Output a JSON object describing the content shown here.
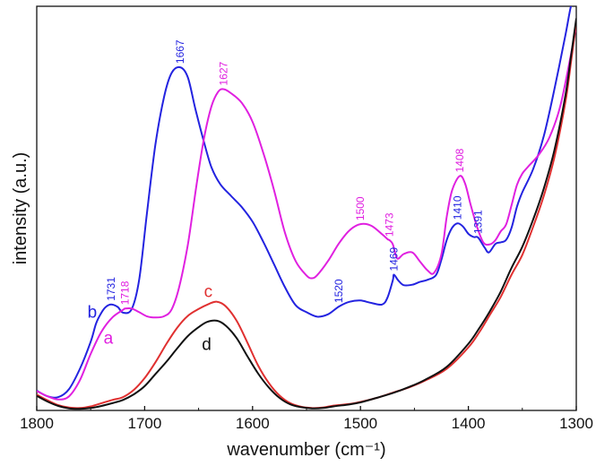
{
  "chart_data": {
    "type": "line",
    "title": "",
    "xlabel": "wavenumber (cm⁻¹)",
    "ylabel": "intensity (a.u.)",
    "x_reversed": true,
    "xlim": [
      1800,
      1300
    ],
    "ylim": [
      0,
      100
    ],
    "x_ticks": [
      1800,
      1700,
      1600,
      1500,
      1400,
      1300
    ],
    "y_ticks_shown": false,
    "grid": false,
    "legend": "none",
    "series": [
      {
        "name": "b",
        "color": "#2323e0",
        "x": [
          1800,
          1790,
          1780,
          1770,
          1760,
          1750,
          1745,
          1740,
          1736,
          1731,
          1725,
          1720,
          1712,
          1705,
          1698,
          1690,
          1682,
          1675,
          1667,
          1660,
          1653,
          1645,
          1638,
          1630,
          1620,
          1610,
          1600,
          1590,
          1580,
          1570,
          1560,
          1550,
          1540,
          1530,
          1520,
          1510,
          1500,
          1490,
          1480,
          1475,
          1470,
          1469,
          1465,
          1460,
          1452,
          1445,
          1438,
          1430,
          1425,
          1420,
          1415,
          1410,
          1405,
          1400,
          1395,
          1391,
          1385,
          1381,
          1375,
          1370,
          1365,
          1360,
          1355,
          1350,
          1340,
          1330,
          1320,
          1310,
          1305,
          1300
        ],
        "y": [
          4.9,
          3.5,
          3.3,
          5.3,
          10.3,
          17,
          21.5,
          24.2,
          25.6,
          26.2,
          25.6,
          24.2,
          25.1,
          32.5,
          48.5,
          65.8,
          77.6,
          83.5,
          84.9,
          82.4,
          74.6,
          66.4,
          60.1,
          56,
          53.1,
          50.3,
          46.7,
          41.7,
          36.1,
          30.5,
          26,
          24.3,
          23.2,
          23.8,
          25.7,
          26.9,
          27.2,
          26.6,
          26.2,
          27.9,
          32.2,
          33.6,
          32.2,
          31,
          31.1,
          31.8,
          32.3,
          33.5,
          37.3,
          42.2,
          45.2,
          46.3,
          45.5,
          43.7,
          42.9,
          42.8,
          40.3,
          39.1,
          41.2,
          41.6,
          42.2,
          45.2,
          50.4,
          54,
          59.7,
          68,
          79.8,
          93,
          100,
          104
        ]
      },
      {
        "name": "a",
        "color": "#e020e0",
        "x": [
          1800,
          1790,
          1780,
          1770,
          1760,
          1750,
          1740,
          1730,
          1720,
          1718,
          1712,
          1705,
          1698,
          1690,
          1682,
          1675,
          1668,
          1660,
          1652,
          1645,
          1638,
          1632,
          1627,
          1620,
          1610,
          1600,
          1590,
          1580,
          1570,
          1560,
          1550,
          1545,
          1540,
          1530,
          1520,
          1510,
          1500,
          1490,
          1480,
          1475,
          1473,
          1470,
          1466,
          1460,
          1452,
          1445,
          1438,
          1432,
          1425,
          1420,
          1415,
          1408,
          1403,
          1398,
          1392,
          1386,
          1380,
          1375,
          1370,
          1365,
          1360,
          1355,
          1350,
          1345,
          1335,
          1325,
          1315,
          1305,
          1300
        ],
        "y": [
          4.8,
          3.5,
          2.7,
          3.5,
          7.5,
          14,
          19.5,
          23,
          24.9,
          25.2,
          25.2,
          24.3,
          23.3,
          23,
          23.3,
          25,
          30.5,
          41,
          55.7,
          67.3,
          75.3,
          78.8,
          79.5,
          78.5,
          76.1,
          71.4,
          63.7,
          54.4,
          44,
          36.9,
          33.4,
          32.7,
          33.5,
          37,
          41.3,
          44.6,
          46.1,
          45.7,
          43.6,
          42.4,
          42.1,
          41.1,
          37.6,
          38.7,
          39.1,
          36.9,
          34.7,
          34,
          38.6,
          48,
          54.5,
          58,
          56.1,
          51,
          45.5,
          41.5,
          41.1,
          42.1,
          44.3,
          46,
          50.8,
          55.8,
          58.6,
          60.2,
          63.2,
          67.5,
          75.1,
          88,
          95
        ]
      },
      {
        "name": "c",
        "color": "#e03030",
        "x": [
          1800,
          1790,
          1780,
          1770,
          1760,
          1750,
          1740,
          1730,
          1720,
          1710,
          1700,
          1690,
          1680,
          1670,
          1660,
          1650,
          1640,
          1633,
          1625,
          1615,
          1605,
          1595,
          1585,
          1575,
          1565,
          1555,
          1545,
          1535,
          1525,
          1510,
          1500,
          1485,
          1470,
          1455,
          1440,
          1420,
          1400,
          1390,
          1380,
          1370,
          1360,
          1350,
          1340,
          1330,
          1320,
          1310,
          1305,
          1300
        ],
        "y": [
          3.9,
          2.5,
          1.3,
          0.7,
          0.6,
          1,
          1.8,
          2.6,
          3.3,
          5.1,
          8,
          11.9,
          16.4,
          20.4,
          23.4,
          25.1,
          26.4,
          26.9,
          25.8,
          22.3,
          16.9,
          11.2,
          6.8,
          3.7,
          1.8,
          0.9,
          0.6,
          0.7,
          1.2,
          1.6,
          2.1,
          3.1,
          4.4,
          5.7,
          7.4,
          10.3,
          15.6,
          19.3,
          23.7,
          28.1,
          33.6,
          38.5,
          45.4,
          53.2,
          62.9,
          76.5,
          86,
          96
        ]
      },
      {
        "name": "d",
        "color": "#111111",
        "x": [
          1800,
          1790,
          1780,
          1770,
          1760,
          1750,
          1740,
          1730,
          1720,
          1710,
          1700,
          1690,
          1680,
          1670,
          1660,
          1650,
          1642,
          1633,
          1625,
          1615,
          1605,
          1595,
          1585,
          1575,
          1565,
          1555,
          1545,
          1535,
          1525,
          1510,
          1500,
          1485,
          1470,
          1455,
          1440,
          1420,
          1400,
          1390,
          1380,
          1370,
          1360,
          1350,
          1340,
          1330,
          1320,
          1310,
          1305,
          1300
        ],
        "y": [
          3.6,
          2.2,
          1.1,
          0.5,
          0.4,
          0.6,
          1.1,
          1.8,
          2.6,
          4,
          6,
          9,
          12,
          15.3,
          18.4,
          20.6,
          21.9,
          22.2,
          21,
          18,
          13.5,
          9.2,
          5.7,
          3.1,
          1.5,
          0.8,
          0.5,
          0.6,
          1,
          1.5,
          2,
          3.1,
          4.3,
          5.8,
          7.6,
          10.8,
          16.5,
          20.3,
          24.6,
          29.4,
          35.3,
          40.5,
          47.2,
          55,
          64.7,
          78.1,
          87.5,
          97
        ]
      }
    ],
    "peak_labels": [
      {
        "text": "1731",
        "series": "b",
        "x": 1731,
        "y": 26.2,
        "color": "#2323e0"
      },
      {
        "text": "1667",
        "series": "b",
        "x": 1667,
        "y": 84.9,
        "color": "#2323e0"
      },
      {
        "text": "1520",
        "series": "b",
        "x": 1520,
        "y": 25.7,
        "color": "#2323e0"
      },
      {
        "text": "1469",
        "series": "b",
        "x": 1469,
        "y": 33.6,
        "color": "#2323e0"
      },
      {
        "text": "1410",
        "series": "b",
        "x": 1410,
        "y": 46.3,
        "color": "#2323e0"
      },
      {
        "text": "1391",
        "series": "b",
        "x": 1391,
        "y": 42.8,
        "color": "#2323e0"
      },
      {
        "text": "1718",
        "series": "a",
        "x": 1718,
        "y": 25.2,
        "color": "#e020e0"
      },
      {
        "text": "1627",
        "series": "a",
        "x": 1627,
        "y": 79.5,
        "color": "#e020e0"
      },
      {
        "text": "1500",
        "series": "a",
        "x": 1500,
        "y": 46.1,
        "color": "#e020e0"
      },
      {
        "text": "1473",
        "series": "a",
        "x": 1473,
        "y": 42.1,
        "color": "#e020e0"
      },
      {
        "text": "1408",
        "series": "a",
        "x": 1408,
        "y": 58.0,
        "color": "#e020e0"
      }
    ],
    "curve_letters": [
      {
        "text": "b",
        "x": 1753,
        "y": 23,
        "color": "#2323e0"
      },
      {
        "text": "a",
        "x": 1738,
        "y": 16.5,
        "color": "#e020e0"
      },
      {
        "text": "c",
        "x": 1645,
        "y": 28,
        "color": "#e03030"
      },
      {
        "text": "d",
        "x": 1647,
        "y": 15,
        "color": "#111111"
      }
    ]
  }
}
